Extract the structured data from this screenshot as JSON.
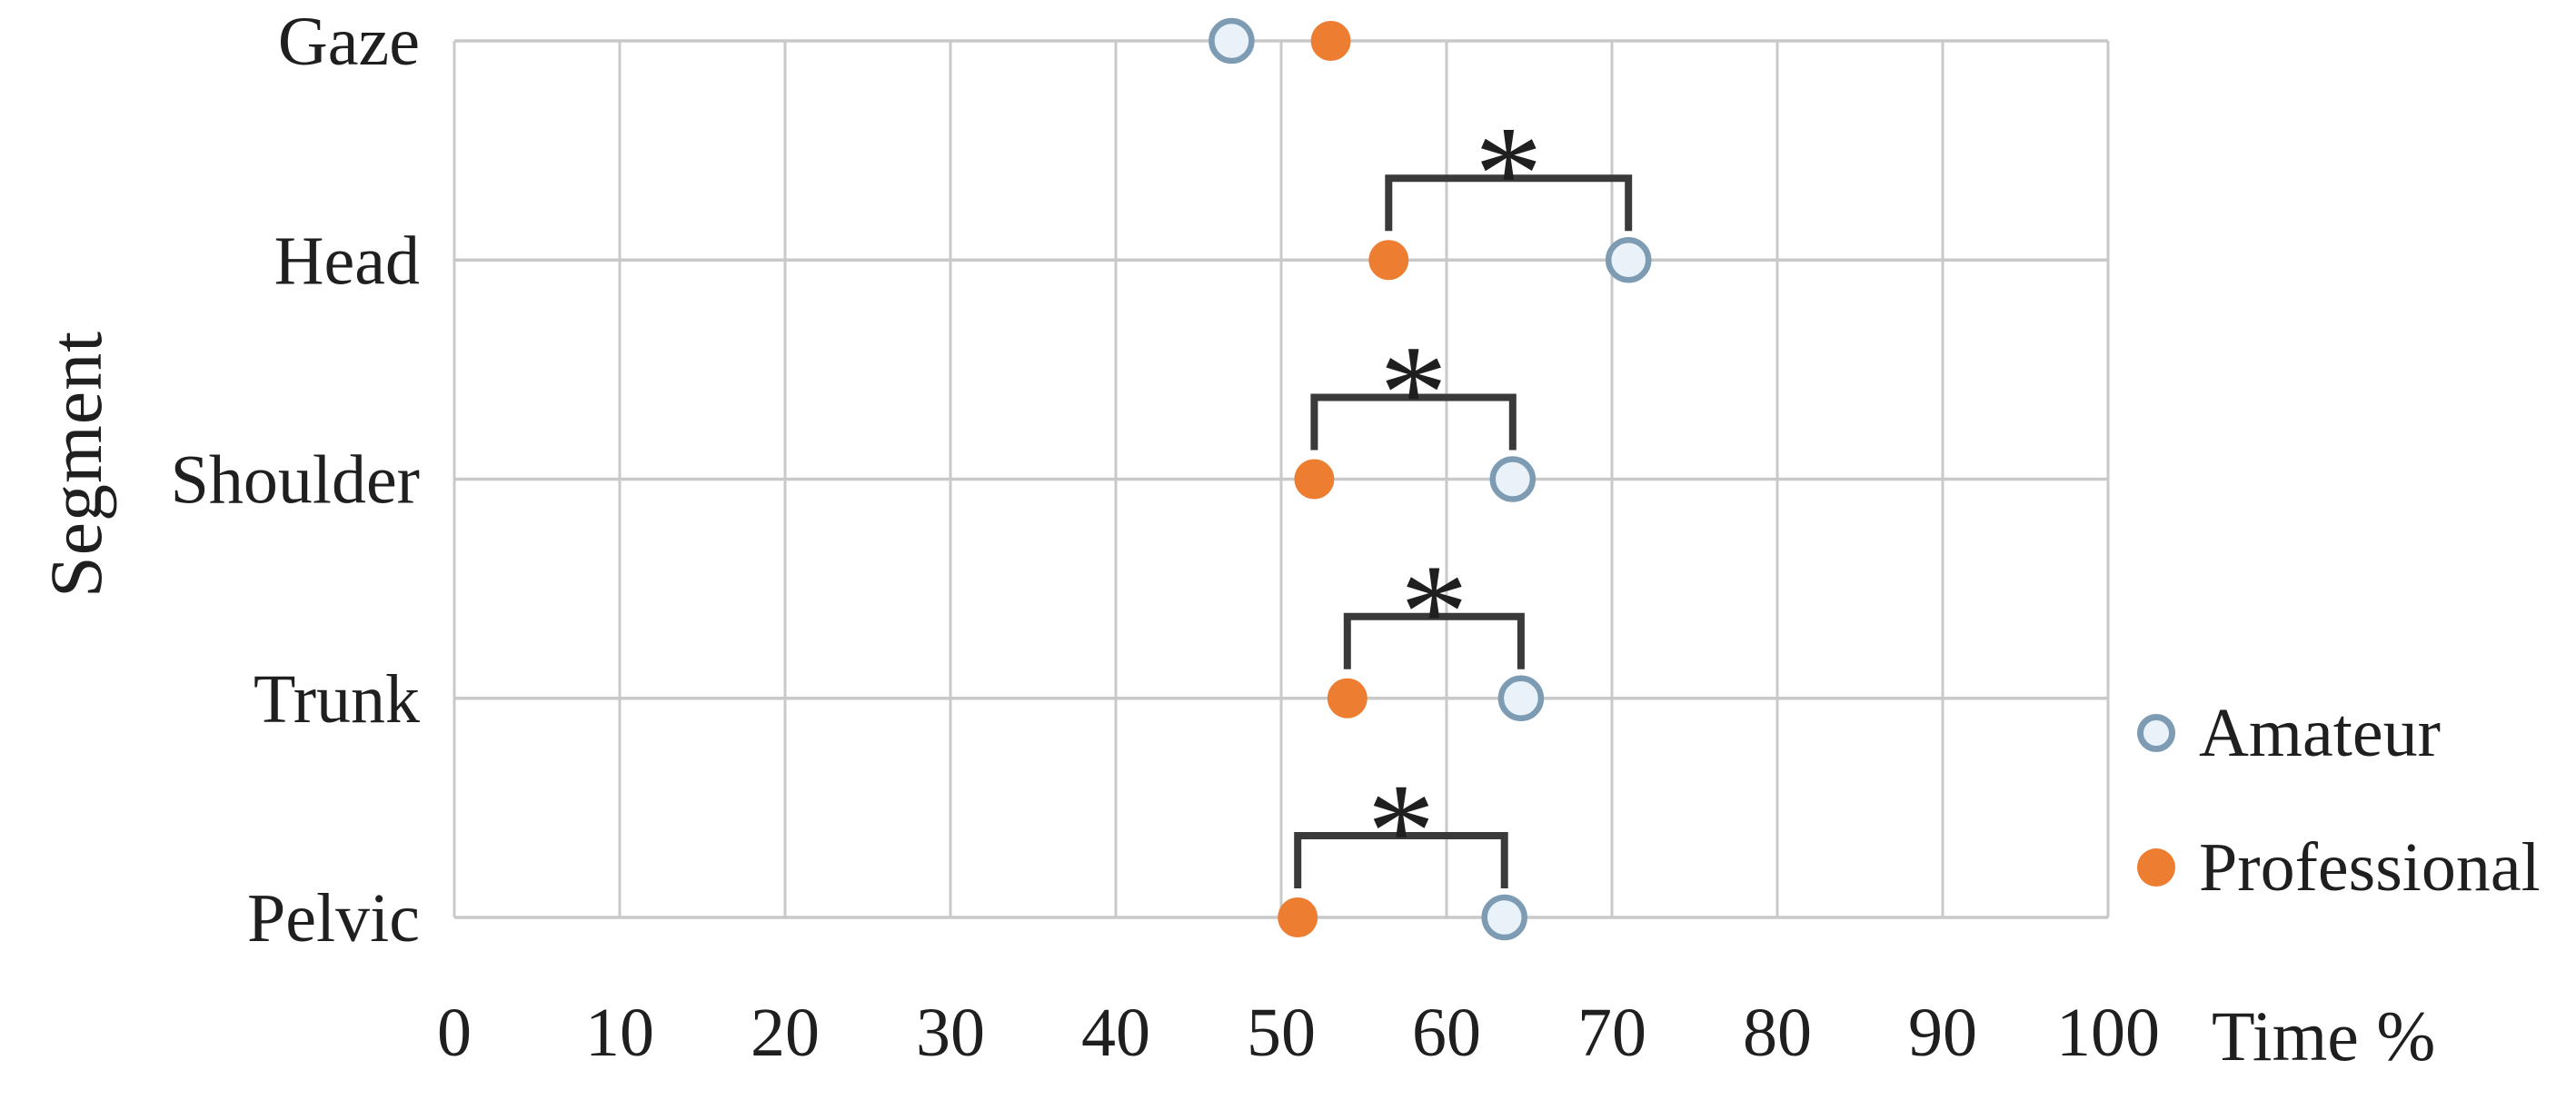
{
  "figure": {
    "background": "#ffffff",
    "text_color": "#1f1f1f",
    "grid_color": "#c9c9c9",
    "bracket_color": "#3a3a3a"
  },
  "chart_data": {
    "type": "scatter",
    "orientation": "horizontal-categories",
    "title": "",
    "xlabel": "Time %",
    "ylabel": "Segment",
    "xlim": [
      0,
      100
    ],
    "xticks": [
      0,
      10,
      20,
      30,
      40,
      50,
      60,
      70,
      80,
      90,
      100
    ],
    "categories": [
      "Gaze",
      "Head",
      "Shoulder",
      "Trunk",
      "Pelvic"
    ],
    "series": [
      {
        "name": "Amateur",
        "marker": "open-circle",
        "color": "#7d9cb4",
        "fill": "#eaf2f9",
        "values": [
          47,
          71,
          64,
          64.5,
          63.5
        ]
      },
      {
        "name": "Professional",
        "marker": "filled-circle",
        "color": "#ed7d31",
        "fill": "#ed7d31",
        "values": [
          53,
          56.5,
          52,
          54,
          51
        ]
      }
    ],
    "significance_brackets": [
      {
        "category": "Head",
        "between": [
          "Professional",
          "Amateur"
        ],
        "label": "*"
      },
      {
        "category": "Shoulder",
        "between": [
          "Professional",
          "Amateur"
        ],
        "label": "*"
      },
      {
        "category": "Trunk",
        "between": [
          "Professional",
          "Amateur"
        ],
        "label": "*"
      },
      {
        "category": "Pelvic",
        "between": [
          "Professional",
          "Amateur"
        ],
        "label": "*"
      }
    ],
    "grid": true,
    "legend_position": "right"
  }
}
